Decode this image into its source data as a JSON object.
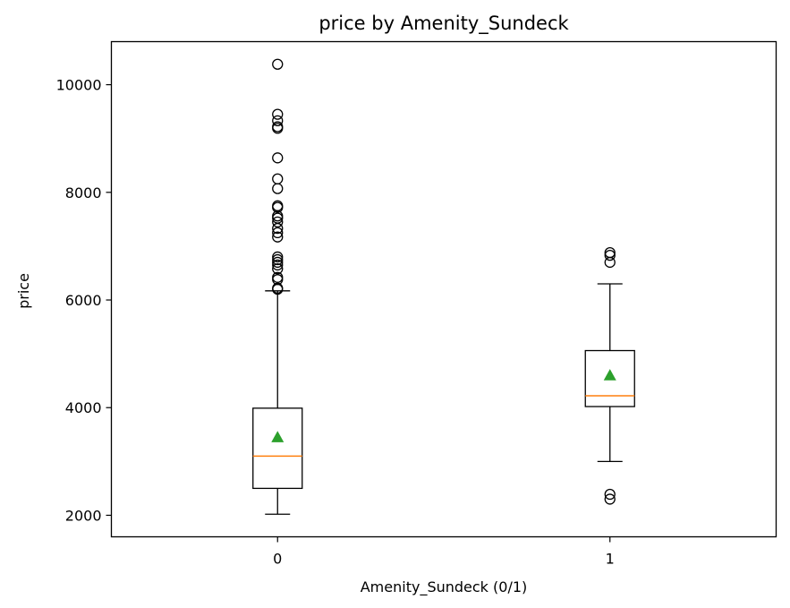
{
  "chart_data": {
    "type": "box",
    "title": "price by Amenity_Sundeck",
    "xlabel": "Amenity_Sundeck (0/1)",
    "ylabel": "price",
    "ylim": [
      1600,
      10800
    ],
    "yticks": [
      2000,
      4000,
      6000,
      8000,
      10000
    ],
    "categories": [
      "0",
      "1"
    ],
    "boxes": [
      {
        "category": "0",
        "whisker_low": 2020,
        "q1": 2500,
        "median": 3100,
        "mean": 3450,
        "q3": 3990,
        "whisker_high": 6170,
        "outliers": [
          6200,
          6220,
          6380,
          6420,
          6580,
          6650,
          6700,
          6750,
          6800,
          7170,
          7250,
          7330,
          7450,
          7520,
          7560,
          7720,
          7750,
          8070,
          8250,
          8640,
          9190,
          9220,
          9330,
          9450,
          10380
        ]
      },
      {
        "category": "1",
        "whisker_low": 3000,
        "q1": 4020,
        "median": 4220,
        "mean": 4600,
        "q3": 5060,
        "whisker_high": 6300,
        "outliers": [
          2300,
          2390,
          6700,
          6830,
          6880
        ]
      }
    ],
    "colors": {
      "box": "#000000",
      "median": "#ff7f0e",
      "mean": "#2ca02c",
      "outlier_edge": "#000000"
    },
    "grid": false
  }
}
